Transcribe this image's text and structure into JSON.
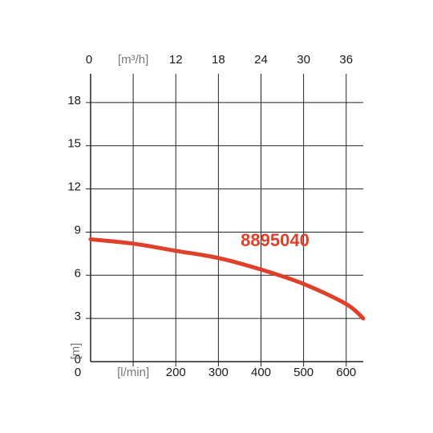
{
  "chart_data": {
    "type": "line",
    "x": [
      0,
      100,
      200,
      300,
      400,
      500,
      600,
      640
    ],
    "series": [
      {
        "name": "8895040",
        "color": "#e0402a",
        "values": [
          8.5,
          8.2,
          7.7,
          7.2,
          6.4,
          5.4,
          4.0,
          3.0
        ]
      }
    ],
    "xlim": [
      0,
      640
    ],
    "xticks": [
      0,
      {
        "value": 100,
        "label": "[l/min]"
      },
      200,
      300,
      400,
      500,
      600
    ],
    "x2lim": [
      0,
      38.4
    ],
    "x2ticks": [
      0,
      {
        "value": 6,
        "label": "[m³/h]"
      },
      12,
      18,
      24,
      30,
      36
    ],
    "ylim": [
      0,
      20
    ],
    "yticks": [
      0,
      3,
      6,
      9,
      12,
      15,
      18
    ],
    "ylabel": "[m]",
    "grid": true
  }
}
